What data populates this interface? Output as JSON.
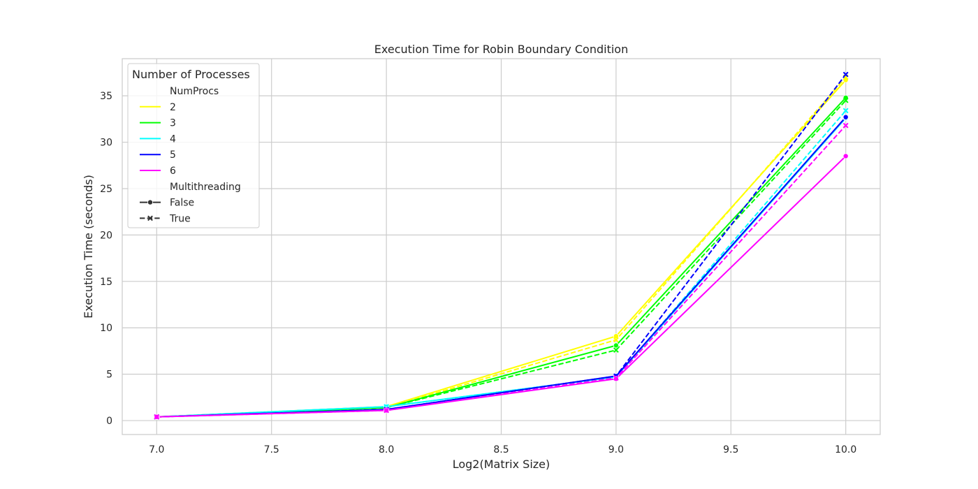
{
  "chart_data": {
    "type": "line",
    "title": "Execution Time for Robin Boundary Condition",
    "xlabel": "Log2(Matrix Size)",
    "ylabel": "Execution Time (seconds)",
    "xlim": [
      6.85,
      10.15
    ],
    "ylim": [
      -1.5,
      39
    ],
    "x_ticks": [
      "7.0",
      "7.5",
      "8.0",
      "8.5",
      "9.0",
      "9.5",
      "10.0"
    ],
    "y_ticks": [
      "0",
      "5",
      "10",
      "15",
      "20",
      "25",
      "30",
      "35"
    ],
    "x_tick_values": [
      7.0,
      7.5,
      8.0,
      8.5,
      9.0,
      9.5,
      10.0
    ],
    "y_tick_values": [
      0,
      5,
      10,
      15,
      20,
      25,
      30,
      35
    ],
    "grid": true,
    "x": [
      7.0,
      8.0,
      9.0,
      10.0
    ],
    "series": [
      {
        "name": "2",
        "multithreading": "False",
        "color": "#ffff00",
        "marker": "circle",
        "dashed": false,
        "values": [
          0.4,
          1.5,
          9.1,
          36.7
        ]
      },
      {
        "name": "2",
        "multithreading": "True",
        "color": "#ffff00",
        "marker": "x",
        "dashed": true,
        "values": [
          0.4,
          1.4,
          8.7,
          37.0
        ]
      },
      {
        "name": "3",
        "multithreading": "False",
        "color": "#00ff00",
        "marker": "circle",
        "dashed": false,
        "values": [
          0.4,
          1.4,
          8.1,
          34.8
        ]
      },
      {
        "name": "3",
        "multithreading": "True",
        "color": "#00ff00",
        "marker": "x",
        "dashed": true,
        "values": [
          0.4,
          1.4,
          7.6,
          34.5
        ]
      },
      {
        "name": "4",
        "multithreading": "False",
        "color": "#00ffff",
        "marker": "circle",
        "dashed": false,
        "values": [
          0.4,
          1.5,
          4.7,
          32.6
        ]
      },
      {
        "name": "4",
        "multithreading": "True",
        "color": "#00ffff",
        "marker": "x",
        "dashed": true,
        "values": [
          0.4,
          1.5,
          4.7,
          33.4
        ]
      },
      {
        "name": "5",
        "multithreading": "False",
        "color": "#0000ff",
        "marker": "circle",
        "dashed": false,
        "values": [
          0.4,
          1.2,
          4.8,
          32.7
        ]
      },
      {
        "name": "5",
        "multithreading": "True",
        "color": "#0000ff",
        "marker": "x",
        "dashed": true,
        "values": [
          0.4,
          1.2,
          4.8,
          37.3
        ]
      },
      {
        "name": "6",
        "multithreading": "False",
        "color": "#ff00ff",
        "marker": "circle",
        "dashed": false,
        "values": [
          0.4,
          1.1,
          4.5,
          28.5
        ]
      },
      {
        "name": "6",
        "multithreading": "True",
        "color": "#ff00ff",
        "marker": "x",
        "dashed": true,
        "values": [
          0.4,
          1.1,
          4.6,
          31.8
        ]
      }
    ],
    "legend": {
      "placement": "top-left",
      "title": "Number of Processes",
      "group1_title": "NumProcs",
      "group1": [
        {
          "label": "2",
          "color": "#ffff00"
        },
        {
          "label": "3",
          "color": "#00ff00"
        },
        {
          "label": "4",
          "color": "#00ffff"
        },
        {
          "label": "5",
          "color": "#0000ff"
        },
        {
          "label": "6",
          "color": "#ff00ff"
        }
      ],
      "group2_title": "Multithreading",
      "group2": [
        {
          "label": "False",
          "marker": "circle",
          "dashed": false
        },
        {
          "label": "True",
          "marker": "x",
          "dashed": true
        }
      ]
    },
    "colors": {
      "grid": "#cccccc",
      "frame": "#cccccc",
      "text": "#262626",
      "legend_marker": "#333333"
    }
  }
}
